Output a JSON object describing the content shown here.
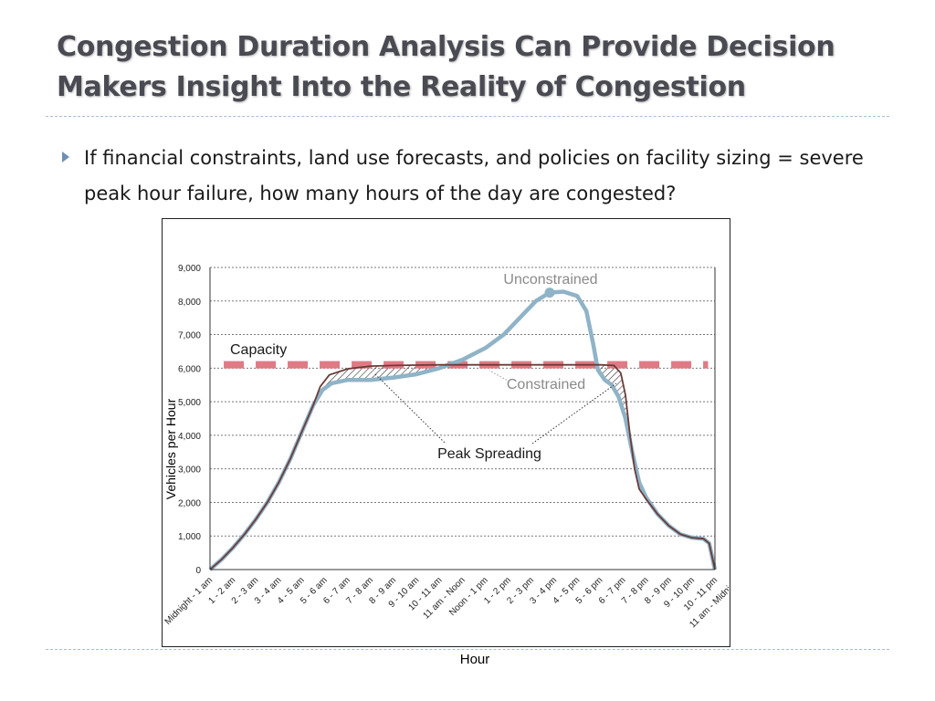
{
  "slide": {
    "title": "Congestion Duration Analysis Can Provide Decision Makers Insight Into the Reality of Congestion",
    "bullet": "If financial constraints, land use forecasts, and policies on facility sizing = severe peak hour failure, how many hours of the day are congested?"
  },
  "colors": {
    "unconstrained": "#8fb3c7",
    "constrained": "#6b3b38",
    "capacity": "#e07a84",
    "grid": "#7a7a7a",
    "title": "#4a4a52",
    "annotation_text": "#8a8a8a"
  },
  "chart_data": {
    "type": "line",
    "xlabel": "Hour",
    "ylabel": "Vehicles per Hour",
    "ylim": [
      0,
      9000
    ],
    "yticks": [
      0,
      1000,
      2000,
      3000,
      4000,
      5000,
      6000,
      7000,
      8000,
      9000
    ],
    "ytick_labels": [
      "0",
      "1,000",
      "2,000",
      "3,000",
      "4,000",
      "5,000",
      "6,000",
      "7,000",
      "8,000",
      "9,000"
    ],
    "grid": true,
    "categories": [
      "Midnight - 1 am",
      "1 - 2 am",
      "2 - 3 am",
      "3 - 4 am",
      "4 - 5 am",
      "5 - 6 am",
      "6 - 7 am",
      "7 - 8 am",
      "8 - 9 am",
      "9 - 10 am",
      "10 - 11 am",
      "11 am - Noon",
      "Noon - 1 pm",
      "1 - 2 pm",
      "2 - 3 pm",
      "3 - 4 pm",
      "4 - 5 pm",
      "5 - 6 pm",
      "6 - 7 pm",
      "7 - 8 pm",
      "8 - 9 pm",
      "9 - 10 pm",
      "10 - 11 pm",
      "11 am - Midnight"
    ],
    "series": [
      {
        "name": "Unconstrained",
        "points": [
          [
            0,
            0
          ],
          [
            0.5,
            300
          ],
          [
            1,
            650
          ],
          [
            1.5,
            1050
          ],
          [
            2,
            1500
          ],
          [
            2.5,
            2000
          ],
          [
            3,
            2600
          ],
          [
            3.5,
            3300
          ],
          [
            4,
            4100
          ],
          [
            4.5,
            4900
          ],
          [
            4.9,
            5350
          ],
          [
            5.3,
            5550
          ],
          [
            6,
            5650
          ],
          [
            7,
            5650
          ],
          [
            8,
            5720
          ],
          [
            9,
            5820
          ],
          [
            10,
            6000
          ],
          [
            11,
            6250
          ],
          [
            12,
            6600
          ],
          [
            12.8,
            7000
          ],
          [
            13.5,
            7500
          ],
          [
            14.2,
            8000
          ],
          [
            14.8,
            8250
          ],
          [
            15.4,
            8280
          ],
          [
            16,
            8150
          ],
          [
            16.4,
            7700
          ],
          [
            16.7,
            6700
          ],
          [
            16.9,
            5950
          ],
          [
            17.2,
            5650
          ],
          [
            17.5,
            5500
          ],
          [
            17.8,
            5150
          ],
          [
            18.1,
            4500
          ],
          [
            18.4,
            3500
          ],
          [
            18.7,
            2600
          ],
          [
            19,
            2150
          ],
          [
            19.5,
            1650
          ],
          [
            20,
            1300
          ],
          [
            20.5,
            1050
          ],
          [
            21,
            950
          ],
          [
            21.5,
            920
          ],
          [
            21.75,
            780
          ],
          [
            22,
            0
          ]
        ]
      },
      {
        "name": "Constrained",
        "points": [
          [
            0,
            0
          ],
          [
            0.5,
            300
          ],
          [
            1,
            650
          ],
          [
            1.5,
            1050
          ],
          [
            2,
            1500
          ],
          [
            2.5,
            2000
          ],
          [
            3,
            2600
          ],
          [
            3.5,
            3300
          ],
          [
            4,
            4100
          ],
          [
            4.5,
            4900
          ],
          [
            4.8,
            5450
          ],
          [
            5.2,
            5800
          ],
          [
            6,
            5980
          ],
          [
            7,
            6060
          ],
          [
            8,
            6080
          ],
          [
            9,
            6090
          ],
          [
            10,
            6100
          ],
          [
            11,
            6100
          ],
          [
            12,
            6100
          ],
          [
            13,
            6100
          ],
          [
            14,
            6100
          ],
          [
            15,
            6100
          ],
          [
            16,
            6100
          ],
          [
            17,
            6100
          ],
          [
            17.6,
            6080
          ],
          [
            17.9,
            5850
          ],
          [
            18.1,
            5200
          ],
          [
            18.3,
            4000
          ],
          [
            18.5,
            3000
          ],
          [
            18.7,
            2400
          ],
          [
            19,
            2100
          ],
          [
            19.5,
            1650
          ],
          [
            20,
            1300
          ],
          [
            20.5,
            1050
          ],
          [
            21,
            950
          ],
          [
            21.5,
            920
          ],
          [
            21.75,
            780
          ],
          [
            22,
            0
          ]
        ]
      },
      {
        "name": "Capacity",
        "value": 6100
      }
    ],
    "peak_marker": [
      14.8,
      8250
    ],
    "annotations": [
      "Unconstrained",
      "Capacity",
      "Constrained",
      "Peak Spreading"
    ]
  }
}
